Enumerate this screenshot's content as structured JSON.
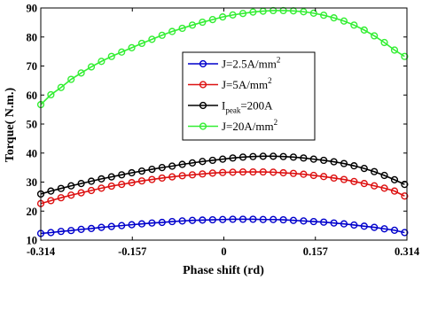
{
  "chart_data": {
    "type": "line",
    "title": "",
    "xlabel": "Phase shift (rd)",
    "ylabel": "Torque( N.m.)",
    "xlim": [
      -0.314,
      0.314
    ],
    "ylim": [
      10,
      90
    ],
    "xticks": [
      -0.314,
      -0.157,
      0,
      0.157,
      0.314
    ],
    "xtick_labels": [
      "-0.314",
      "-0.157",
      "0",
      "0.157",
      "0.314"
    ],
    "yticks": [
      10,
      20,
      30,
      40,
      50,
      60,
      70,
      80,
      90
    ],
    "ytick_labels": [
      "10",
      "20",
      "30",
      "40",
      "50",
      "60",
      "70",
      "80",
      "90"
    ],
    "grid": false,
    "legend_position": "upper-center",
    "x": [
      -0.314,
      -0.2967,
      -0.2793,
      -0.262,
      -0.2447,
      -0.2273,
      -0.21,
      -0.1927,
      -0.1753,
      -0.158,
      -0.1407,
      -0.1233,
      -0.106,
      -0.0887,
      -0.0713,
      -0.054,
      -0.0367,
      -0.0193,
      -0.002,
      0.0153,
      0.0327,
      0.05,
      0.0673,
      0.0847,
      0.102,
      0.1193,
      0.1367,
      0.154,
      0.1713,
      0.1887,
      0.206,
      0.2233,
      0.2407,
      0.258,
      0.2753,
      0.2927,
      0.31
    ],
    "series": [
      {
        "name": "J=2.5A/mm2",
        "label_main": "J=2.5A/mm",
        "label_sup": "2",
        "label_sub": "",
        "label_tail": "",
        "color": "#0000cc",
        "values": [
          12.3,
          12.6,
          13.0,
          13.3,
          13.7,
          14.0,
          14.4,
          14.7,
          15.0,
          15.3,
          15.6,
          15.9,
          16.1,
          16.4,
          16.6,
          16.8,
          16.9,
          17.0,
          17.1,
          17.2,
          17.2,
          17.2,
          17.1,
          17.1,
          17.0,
          16.8,
          16.6,
          16.4,
          16.2,
          15.9,
          15.6,
          15.2,
          14.8,
          14.4,
          13.9,
          13.4,
          12.6
        ]
      },
      {
        "name": "J=5A/mm2",
        "label_main": "J=5A/mm",
        "label_sup": "2",
        "label_sub": "",
        "label_tail": "",
        "color": "#dd1111",
        "values": [
          22.6,
          23.6,
          24.6,
          25.5,
          26.3,
          27.1,
          27.9,
          28.6,
          29.2,
          29.8,
          30.4,
          30.9,
          31.4,
          31.8,
          32.2,
          32.5,
          32.8,
          33.1,
          33.3,
          33.4,
          33.5,
          33.5,
          33.5,
          33.4,
          33.2,
          33.0,
          32.7,
          32.3,
          31.9,
          31.4,
          30.9,
          30.2,
          29.5,
          28.7,
          27.9,
          26.9,
          25.2
        ]
      },
      {
        "name": "Ipeak=200A",
        "label_main": "I",
        "label_sup": "",
        "label_sub": "peak",
        "label_tail": "=200A",
        "color": "#000000",
        "values": [
          25.9,
          26.9,
          27.8,
          28.7,
          29.5,
          30.3,
          31.1,
          31.8,
          32.5,
          33.2,
          33.8,
          34.4,
          35.0,
          35.5,
          36.1,
          36.6,
          37.1,
          37.5,
          37.9,
          38.3,
          38.6,
          38.8,
          38.9,
          38.9,
          38.8,
          38.6,
          38.3,
          37.9,
          37.5,
          37.0,
          36.4,
          35.6,
          34.7,
          33.6,
          32.3,
          30.8,
          29.2
        ]
      },
      {
        "name": "J=20A/mm2",
        "label_main": "J=20A/mm",
        "label_sup": "2",
        "label_sub": "",
        "label_tail": "",
        "color": "#33ee33",
        "values": [
          56.7,
          60.1,
          62.6,
          65.4,
          67.6,
          69.7,
          71.6,
          73.3,
          74.8,
          76.3,
          77.8,
          79.2,
          80.6,
          81.9,
          83.0,
          84.1,
          85.1,
          86.0,
          86.9,
          87.6,
          88.1,
          88.6,
          88.9,
          89.1,
          89.1,
          89.0,
          88.7,
          88.2,
          87.5,
          86.6,
          85.5,
          84.1,
          82.4,
          80.4,
          78.1,
          75.5,
          73.3
        ]
      }
    ]
  }
}
